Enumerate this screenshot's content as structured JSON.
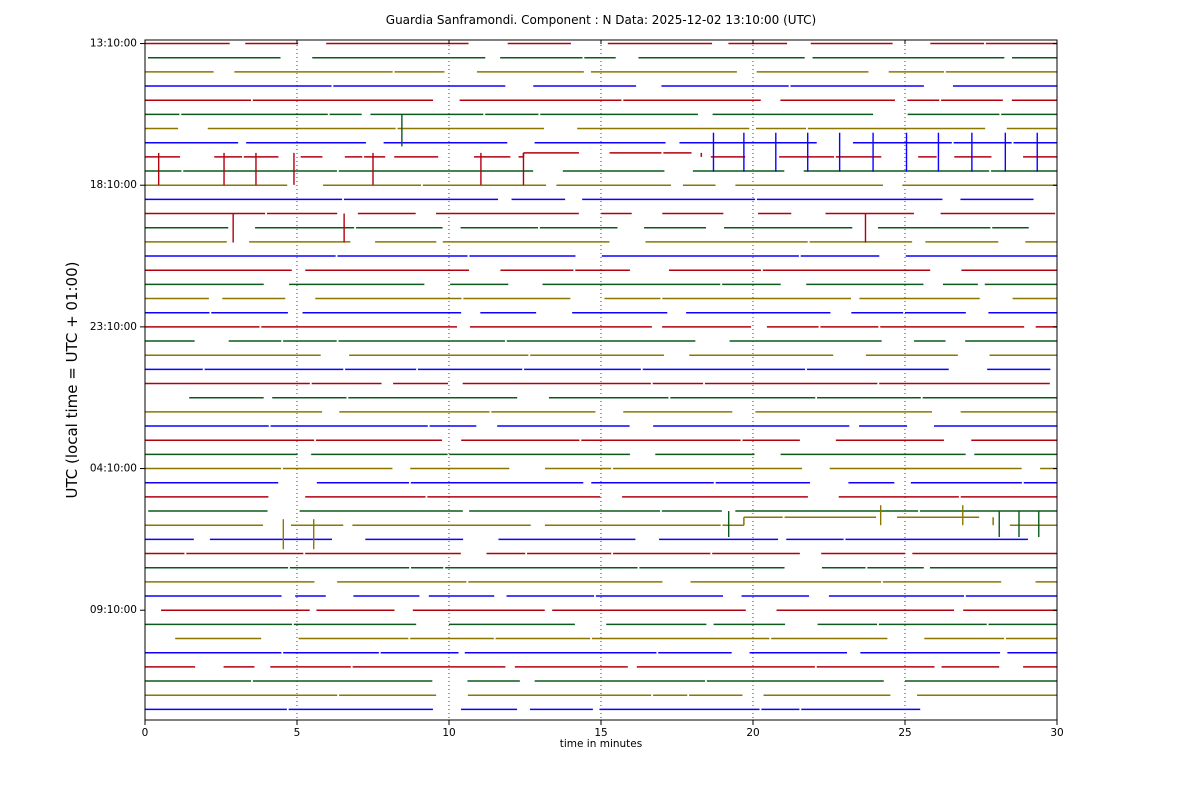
{
  "chart_data": {
    "type": "line",
    "subtype": "helicorder-dayplot",
    "title": "Guardia Sanframondi. Component : N Data: 2025-12-02 13:10:00 (UTC)",
    "xlabel": "time in minutes",
    "ylabel": "UTC (local time = UTC + 01:00)",
    "xlim": [
      0,
      30
    ],
    "minutes_per_row": 30,
    "num_rows": 48,
    "x_ticks": [
      0,
      5,
      10,
      15,
      20,
      25,
      30
    ],
    "x_gridlines_minutes": [
      5,
      10,
      15,
      20,
      25
    ],
    "grid": "vertical-dotted",
    "legend_position": "none",
    "y_ticks": [
      {
        "row": 0,
        "label": "13:10:00"
      },
      {
        "row": 10,
        "label": "18:10:00"
      },
      {
        "row": 20,
        "label": "23:10:00"
      },
      {
        "row": 30,
        "label": "04:10:00"
      },
      {
        "row": 40,
        "label": "09:10:00"
      }
    ],
    "row_color_cycle": [
      "#b2000f",
      "#0b5a1c",
      "#8c7600",
      "#0e01ff"
    ],
    "rows": [
      {
        "start": "13:10"
      },
      {
        "start": "13:40"
      },
      {
        "start": "14:10"
      },
      {
        "start": "14:40"
      },
      {
        "start": "15:10"
      },
      {
        "start": "15:40"
      },
      {
        "start": "16:10"
      },
      {
        "start": "16:40"
      },
      {
        "start": "17:10"
      },
      {
        "start": "17:40"
      },
      {
        "start": "18:10"
      },
      {
        "start": "18:40"
      },
      {
        "start": "19:10"
      },
      {
        "start": "19:40"
      },
      {
        "start": "20:10"
      },
      {
        "start": "20:40"
      },
      {
        "start": "21:10"
      },
      {
        "start": "21:40"
      },
      {
        "start": "22:10"
      },
      {
        "start": "22:40"
      },
      {
        "start": "23:10"
      },
      {
        "start": "23:40"
      },
      {
        "start": "00:10"
      },
      {
        "start": "00:40"
      },
      {
        "start": "01:10"
      },
      {
        "start": "01:40"
      },
      {
        "start": "02:10"
      },
      {
        "start": "02:40"
      },
      {
        "start": "03:10"
      },
      {
        "start": "03:40"
      },
      {
        "start": "04:10"
      },
      {
        "start": "04:40"
      },
      {
        "start": "05:10"
      },
      {
        "start": "05:40"
      },
      {
        "start": "06:10"
      },
      {
        "start": "06:40"
      },
      {
        "start": "07:10"
      },
      {
        "start": "07:40"
      },
      {
        "start": "08:10"
      },
      {
        "start": "08:40"
      },
      {
        "start": "09:10"
      },
      {
        "start": "09:40"
      },
      {
        "start": "10:10"
      },
      {
        "start": "10:40"
      },
      {
        "start": "11:10"
      },
      {
        "start": "11:40"
      },
      {
        "start": "12:10"
      },
      {
        "start": "12:40"
      }
    ],
    "events": [
      {
        "row": 5,
        "minutes": [
          8.45
        ],
        "up": 0,
        "down": 32
      },
      {
        "row": 7,
        "minutes": [
          18.7,
          19.7,
          20.75,
          21.8,
          22.85,
          23.95,
          25.05,
          26.1,
          27.2,
          28.3,
          29.35
        ],
        "up": 10,
        "down": 29
      },
      {
        "row": 8,
        "minutes": [
          0.45,
          2.6,
          3.65,
          4.9,
          7.5,
          11.05,
          12.45
        ],
        "up": 4,
        "down": 28
      },
      {
        "row": 12,
        "minutes": [
          2.9,
          6.55,
          23.7
        ],
        "up": 0,
        "down": 29
      },
      {
        "row": 33,
        "minutes": [
          19.2,
          28.1,
          28.75,
          29.4
        ],
        "up": 0,
        "down": 26
      },
      {
        "row": 34,
        "minutes": [
          4.55,
          5.55
        ],
        "up": 6,
        "down": 24
      },
      {
        "row": 34,
        "minutes": [
          24.2,
          26.9
        ],
        "up": 20,
        "down": 0
      }
    ],
    "steps": [
      {
        "row": 8,
        "from": 12.45,
        "to": 18.3,
        "offset": -4
      },
      {
        "row": 34,
        "from": 19.7,
        "to": 27.9,
        "offset": -8
      }
    ],
    "last_row_end_minute": 25.5,
    "render_params": {
      "seed": 42,
      "sparse_rows": [
        8
      ],
      "trace_width": 1.5
    }
  }
}
